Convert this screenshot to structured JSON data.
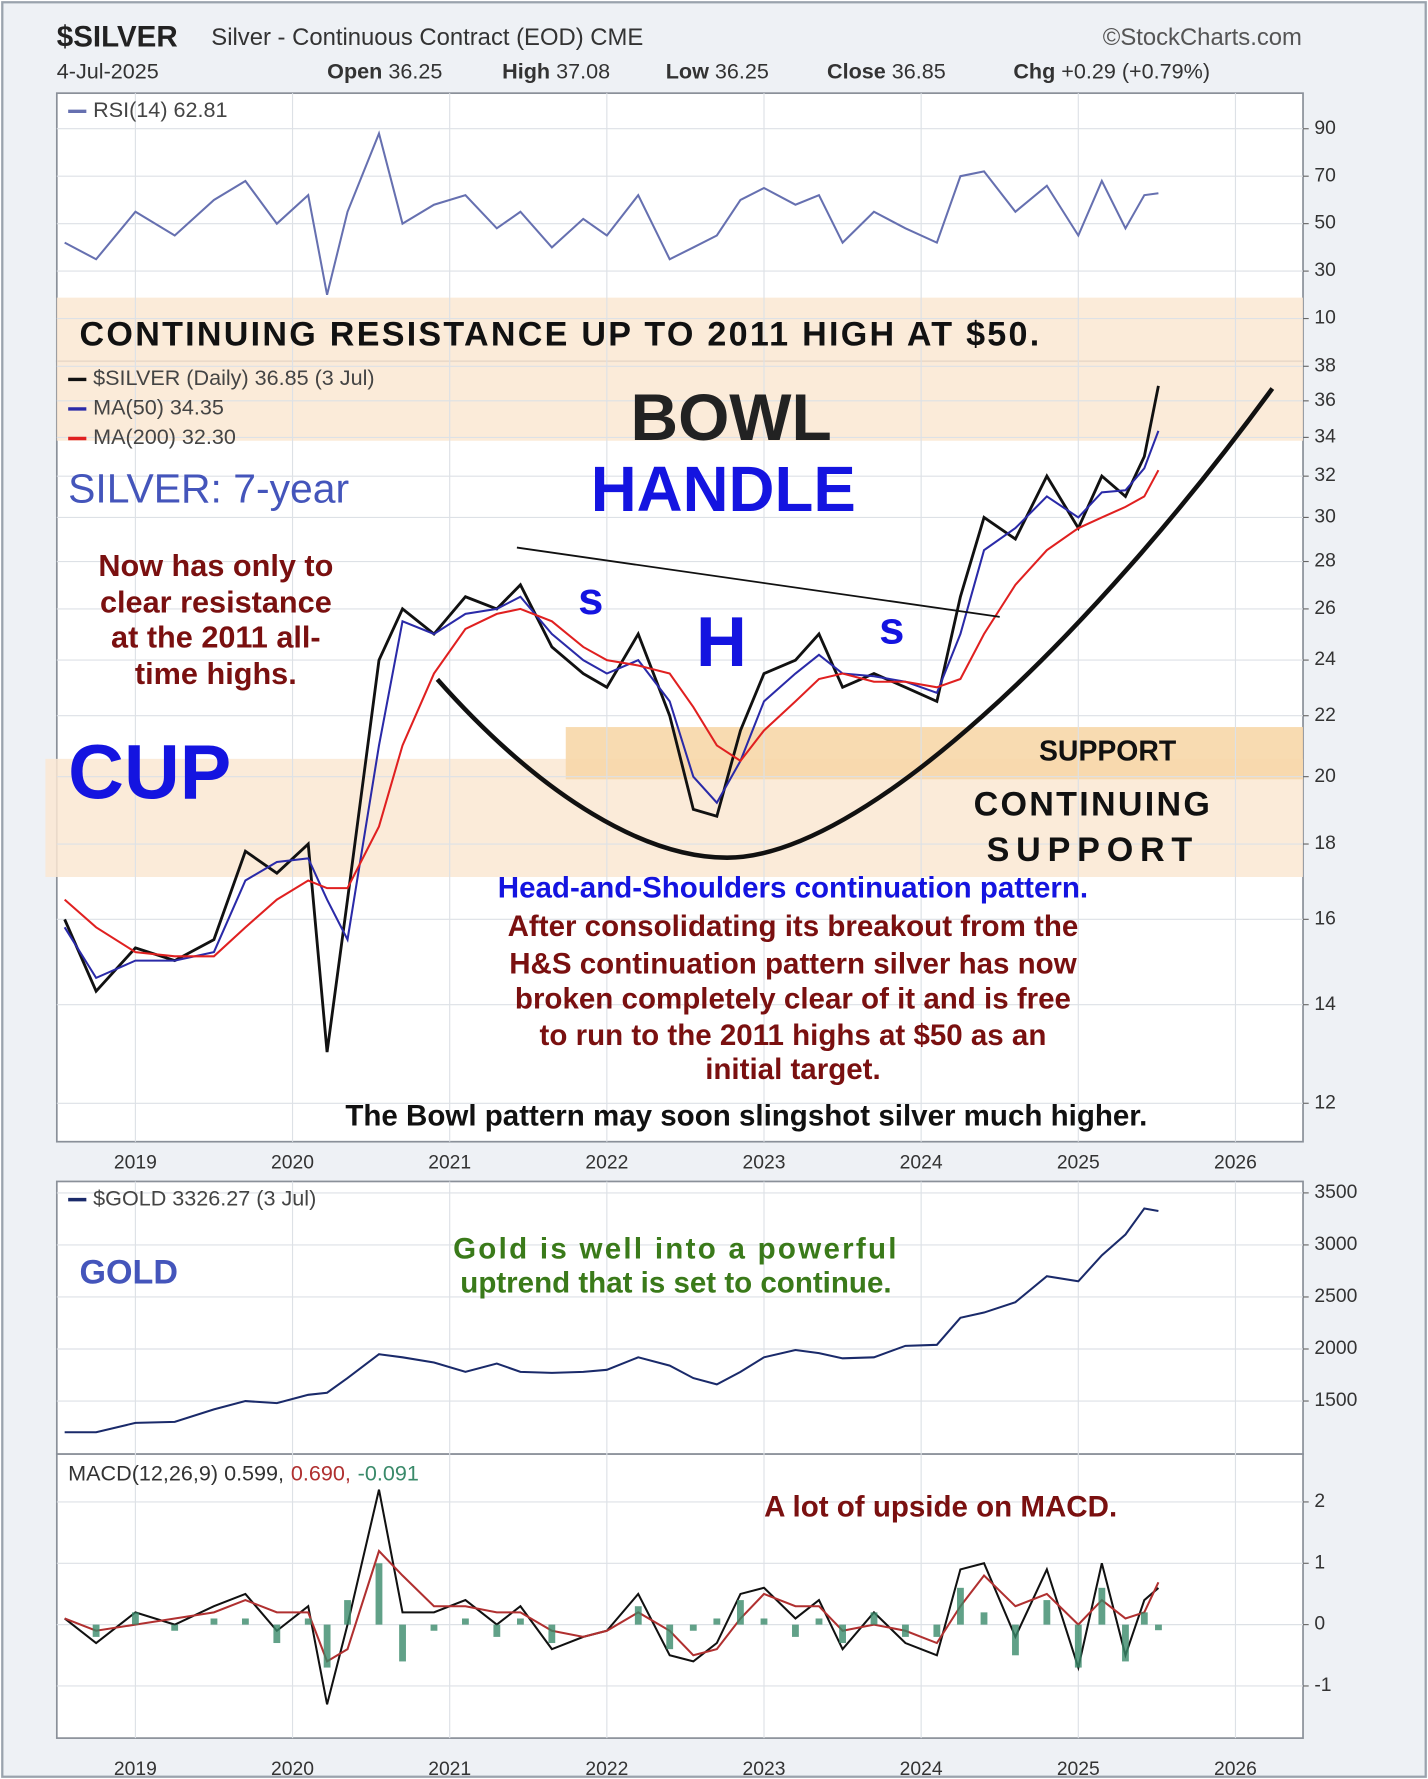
{
  "header": {
    "symbol": "$SILVER",
    "description": "Silver - Continuous Contract (EOD) CME",
    "source": "©StockCharts.com",
    "date": "4-Jul-2025",
    "quote": [
      {
        "label": "Open",
        "value": "36.25"
      },
      {
        "label": "High",
        "value": "37.08"
      },
      {
        "label": "Low",
        "value": "36.25"
      },
      {
        "label": "Close",
        "value": "36.85"
      },
      {
        "label": "Chg",
        "value": "+0.29 (+0.79%)"
      }
    ]
  },
  "chart_data": [
    {
      "type": "line",
      "xlim": [
        2018.5,
        2026.43
      ],
      "ylim": [
        -8,
        105
      ],
      "yticks": [
        10,
        30,
        50,
        70,
        90
      ],
      "grid": true,
      "x": [
        2018.55,
        2018.75,
        2019.0,
        2019.25,
        2019.5,
        2019.7,
        2019.9,
        2020.1,
        2020.22,
        2020.35,
        2020.55,
        2020.7,
        2020.9,
        2021.1,
        2021.3,
        2021.45,
        2021.65,
        2021.85,
        2022.0,
        2022.2,
        2022.4,
        2022.55,
        2022.7,
        2022.85,
        2023.0,
        2023.2,
        2023.35,
        2023.5,
        2023.7,
        2023.9,
        2024.1,
        2024.25,
        2024.4,
        2024.6,
        2024.8,
        2025.0,
        2025.15,
        2025.3,
        2025.42,
        2025.51
      ],
      "series": [
        {
          "name": "RSI(14) 62.81",
          "color": "#6670b0",
          "values": [
            42,
            35,
            55,
            45,
            60,
            68,
            50,
            62,
            20,
            55,
            88,
            50,
            58,
            62,
            48,
            55,
            40,
            52,
            45,
            62,
            35,
            40,
            45,
            60,
            65,
            58,
            62,
            42,
            55,
            48,
            42,
            70,
            72,
            55,
            66,
            45,
            68,
            48,
            62,
            62.81
          ]
        }
      ],
      "annotations": [
        "CONTINUING RESISTANCE UP TO 2011 HIGH AT $50."
      ]
    },
    {
      "type": "line",
      "log_scale": true,
      "xlim": [
        2018.5,
        2026.43
      ],
      "ylim": [
        11.3,
        38.3
      ],
      "yticks": [
        12,
        14,
        16,
        18,
        20,
        22,
        24,
        26,
        28,
        30,
        32,
        34,
        36,
        38
      ],
      "xticks": [
        2019,
        2020,
        2021,
        2022,
        2023,
        2024,
        2025,
        2026
      ],
      "grid": true,
      "x": [
        2018.55,
        2018.75,
        2019.0,
        2019.25,
        2019.5,
        2019.7,
        2019.9,
        2020.1,
        2020.22,
        2020.35,
        2020.55,
        2020.7,
        2020.9,
        2021.1,
        2021.3,
        2021.45,
        2021.65,
        2021.85,
        2022.0,
        2022.2,
        2022.4,
        2022.55,
        2022.7,
        2022.85,
        2023.0,
        2023.2,
        2023.35,
        2023.5,
        2023.7,
        2023.9,
        2024.1,
        2024.25,
        2024.4,
        2024.6,
        2024.8,
        2025.0,
        2025.15,
        2025.3,
        2025.42,
        2025.51
      ],
      "series": [
        {
          "name": "$SILVER (Daily) 36.85 (3 Jul)",
          "color": "#111111",
          "values": [
            16.0,
            14.3,
            15.3,
            15.0,
            15.5,
            17.8,
            17.2,
            18.0,
            13.0,
            16.5,
            24.0,
            26.0,
            25.0,
            26.5,
            26.0,
            27.0,
            24.5,
            23.5,
            23.0,
            25.0,
            22.0,
            19.0,
            18.8,
            21.5,
            23.5,
            24.0,
            25.0,
            23.0,
            23.5,
            23.0,
            22.5,
            26.5,
            30.0,
            29.0,
            32.0,
            29.5,
            32.0,
            31.0,
            33.0,
            36.85
          ]
        },
        {
          "name": "MA(50) 34.35",
          "color": "#2a2aa8",
          "values": [
            15.8,
            14.6,
            15.0,
            15.0,
            15.2,
            17.0,
            17.5,
            17.6,
            16.5,
            15.5,
            21.0,
            25.5,
            25.0,
            25.8,
            26.0,
            26.5,
            25.0,
            24.0,
            23.5,
            24.0,
            22.5,
            20.0,
            19.2,
            20.5,
            22.5,
            23.5,
            24.2,
            23.5,
            23.4,
            23.2,
            22.8,
            25.0,
            28.5,
            29.5,
            31.0,
            30.0,
            31.2,
            31.3,
            32.4,
            34.35
          ]
        },
        {
          "name": "MA(200) 32.30",
          "color": "#e02020",
          "values": [
            16.5,
            15.8,
            15.2,
            15.1,
            15.1,
            15.8,
            16.5,
            17.0,
            16.8,
            16.8,
            18.5,
            21.0,
            23.5,
            25.2,
            25.8,
            26.0,
            25.5,
            24.5,
            24.0,
            23.8,
            23.5,
            22.3,
            21.0,
            20.5,
            21.5,
            22.5,
            23.3,
            23.5,
            23.2,
            23.2,
            23.0,
            23.3,
            25.0,
            27.0,
            28.5,
            29.5,
            30.0,
            30.5,
            31.0,
            32.3
          ]
        }
      ],
      "annotations": [
        "BOWL",
        "HANDLE",
        "SILVER: 7-year",
        "Now has only to",
        "clear resistance",
        "at the 2011 all-",
        "time highs.",
        "CUP",
        "s",
        "H",
        "s",
        "SUPPORT",
        "CONTINUING",
        "SUPPORT",
        "Head-and-Shoulders continuation pattern.",
        "After consolidating its breakout from the",
        "H&S continuation pattern silver has now",
        "broken completely clear of it and is free",
        "to run to the 2011 highs at $50 as an",
        "initial target.",
        "The Bowl pattern may soon slingshot silver much higher."
      ]
    },
    {
      "type": "line",
      "xlim": [
        2018.5,
        2026.43
      ],
      "ylim": [
        990,
        3610
      ],
      "yticks": [
        1500,
        2000,
        2500,
        3000,
        3500
      ],
      "grid": true,
      "x": [
        2018.55,
        2018.75,
        2019.0,
        2019.25,
        2019.5,
        2019.7,
        2019.9,
        2020.1,
        2020.22,
        2020.35,
        2020.55,
        2020.7,
        2020.9,
        2021.1,
        2021.3,
        2021.45,
        2021.65,
        2021.85,
        2022.0,
        2022.2,
        2022.4,
        2022.55,
        2022.7,
        2022.85,
        2023.0,
        2023.2,
        2023.35,
        2023.5,
        2023.7,
        2023.9,
        2024.1,
        2024.25,
        2024.4,
        2024.6,
        2024.8,
        2025.0,
        2025.15,
        2025.3,
        2025.42,
        2025.51
      ],
      "series": [
        {
          "name": "$GOLD 3326.27 (3 Jul)",
          "color": "#1a2a6a",
          "values": [
            1200,
            1200,
            1290,
            1300,
            1420,
            1500,
            1480,
            1560,
            1580,
            1720,
            1950,
            1920,
            1870,
            1780,
            1860,
            1780,
            1770,
            1780,
            1800,
            1920,
            1840,
            1720,
            1660,
            1780,
            1920,
            1990,
            1960,
            1910,
            1920,
            2030,
            2040,
            2300,
            2350,
            2450,
            2700,
            2650,
            2900,
            3100,
            3350,
            3326.27
          ]
        }
      ],
      "annotations": [
        "GOLD",
        "Gold is well into a powerful",
        "uptrend that is set to continue."
      ]
    },
    {
      "type": "line",
      "xlim": [
        2018.5,
        2026.43
      ],
      "ylim": [
        -1.85,
        2.78
      ],
      "yticks": [
        -1,
        0,
        1,
        2
      ],
      "xticks": [
        2019,
        2020,
        2021,
        2022,
        2023,
        2024,
        2025,
        2026
      ],
      "grid": true,
      "x": [
        2018.55,
        2018.75,
        2019.0,
        2019.25,
        2019.5,
        2019.7,
        2019.9,
        2020.1,
        2020.22,
        2020.35,
        2020.55,
        2020.7,
        2020.9,
        2021.1,
        2021.3,
        2021.45,
        2021.65,
        2021.85,
        2022.0,
        2022.2,
        2022.4,
        2022.55,
        2022.7,
        2022.85,
        2023.0,
        2023.2,
        2023.35,
        2023.5,
        2023.7,
        2023.9,
        2024.1,
        2024.25,
        2024.4,
        2024.6,
        2024.8,
        2025.0,
        2025.15,
        2025.3,
        2025.42,
        2025.51
      ],
      "series": [
        {
          "name": "MACD(12,26,9) 0.599,",
          "color": "#111111",
          "values": [
            0.1,
            -0.3,
            0.2,
            0.0,
            0.3,
            0.5,
            -0.1,
            0.3,
            -1.3,
            0.0,
            2.2,
            0.2,
            0.2,
            0.4,
            0.0,
            0.3,
            -0.4,
            -0.2,
            -0.1,
            0.5,
            -0.5,
            -0.6,
            -0.3,
            0.5,
            0.6,
            0.1,
            0.4,
            -0.4,
            0.2,
            -0.3,
            -0.5,
            0.9,
            1.0,
            -0.2,
            0.9,
            -0.7,
            1.0,
            -0.5,
            0.4,
            0.599
          ]
        },
        {
          "name": "0.690,",
          "color": "#b03030",
          "values": [
            0.1,
            -0.1,
            0.0,
            0.1,
            0.2,
            0.4,
            0.2,
            0.2,
            -0.6,
            -0.4,
            1.2,
            0.8,
            0.3,
            0.3,
            0.2,
            0.2,
            -0.1,
            -0.2,
            -0.1,
            0.2,
            -0.1,
            -0.5,
            -0.4,
            0.1,
            0.5,
            0.3,
            0.3,
            -0.1,
            0.0,
            -0.1,
            -0.3,
            0.3,
            0.8,
            0.3,
            0.5,
            0.0,
            0.4,
            0.1,
            0.2,
            0.69
          ]
        },
        {
          "name": "-0.091",
          "color": "#3a8a6a",
          "kind": "histogram",
          "values": [
            0.0,
            -0.2,
            0.2,
            -0.1,
            0.1,
            0.1,
            -0.3,
            0.1,
            -0.7,
            0.4,
            1.0,
            -0.6,
            -0.1,
            0.1,
            -0.2,
            0.1,
            -0.3,
            0.0,
            0.0,
            0.3,
            -0.4,
            -0.1,
            0.1,
            0.4,
            0.1,
            -0.2,
            0.1,
            -0.3,
            0.2,
            -0.2,
            -0.2,
            0.6,
            0.2,
            -0.5,
            0.4,
            -0.7,
            0.6,
            -0.6,
            0.2,
            -0.091
          ]
        }
      ],
      "annotations": [
        "A lot of upside on MACD."
      ]
    }
  ]
}
